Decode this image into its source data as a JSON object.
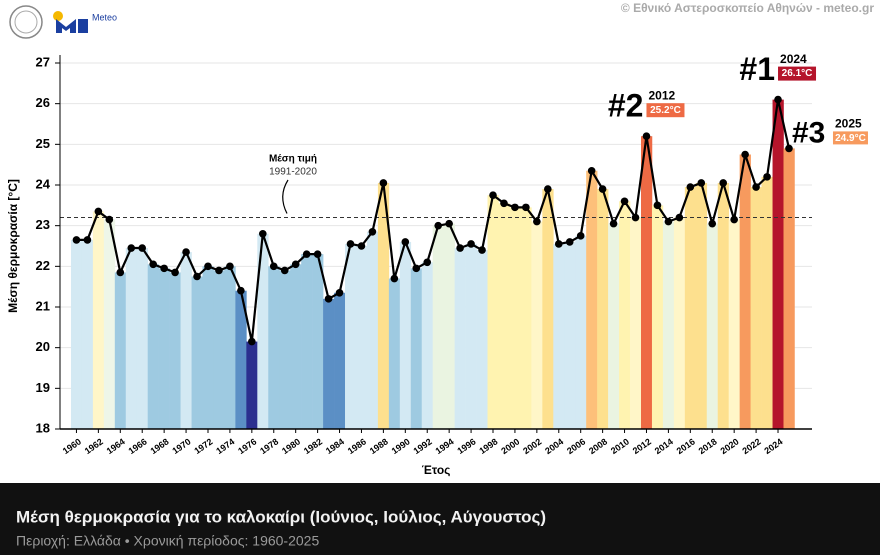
{
  "header": {
    "brand": "Meteo",
    "credit": "© Εθνικό Αστεροσκοπείο Αθηνών - meteo.gr"
  },
  "chart_data": {
    "type": "bar_line",
    "title": "Μέση θερμοκρασία για το καλοκαίρι (Ιούνιος, Ιούλιος, Αύγουστος)",
    "subtitle": "Περιοχή: Ελλάδα • Χρονική περίοδος: 1960-2025",
    "x_label": "Έτος",
    "y_label": "Μέση θερμοκρασία [°C]",
    "x": [
      1960,
      1961,
      1962,
      1963,
      1964,
      1965,
      1966,
      1967,
      1968,
      1969,
      1970,
      1971,
      1972,
      1973,
      1974,
      1975,
      1976,
      1977,
      1978,
      1979,
      1980,
      1981,
      1982,
      1983,
      1984,
      1985,
      1986,
      1987,
      1988,
      1989,
      1990,
      1991,
      1992,
      1993,
      1994,
      1995,
      1996,
      1997,
      1998,
      1999,
      2000,
      2001,
      2002,
      2003,
      2004,
      2005,
      2006,
      2007,
      2008,
      2009,
      2010,
      2011,
      2012,
      2013,
      2014,
      2015,
      2016,
      2017,
      2018,
      2019,
      2020,
      2021,
      2022,
      2023,
      2024,
      2025
    ],
    "values": [
      22.65,
      22.65,
      23.35,
      23.15,
      21.85,
      22.45,
      22.45,
      22.05,
      21.95,
      21.85,
      22.35,
      21.75,
      22.0,
      21.9,
      22.0,
      21.4,
      20.15,
      22.8,
      22.0,
      21.9,
      22.05,
      22.3,
      22.3,
      21.2,
      21.35,
      22.55,
      22.5,
      22.85,
      24.05,
      21.7,
      22.6,
      21.95,
      22.1,
      23.0,
      23.05,
      22.45,
      22.55,
      22.4,
      23.75,
      23.55,
      23.45,
      23.45,
      23.1,
      23.9,
      22.55,
      22.6,
      22.75,
      24.35,
      23.9,
      23.05,
      23.6,
      23.2,
      25.2,
      23.5,
      23.1,
      23.2,
      23.95,
      24.05,
      23.05,
      24.05,
      23.15,
      24.75,
      23.95,
      24.2,
      26.1,
      24.9
    ],
    "colors": [
      "#d3e9f3",
      "#d3e9f3",
      "#fff6c8",
      "#eef6e8",
      "#9ecae1",
      "#d3e9f3",
      "#d3e9f3",
      "#9ecae1",
      "#9ecae1",
      "#9ecae1",
      "#d3e9f3",
      "#9ecae1",
      "#9ecae1",
      "#9ecae1",
      "#9ecae1",
      "#5b8fc5",
      "#2b2f8f",
      "#d3e9f3",
      "#9ecae1",
      "#9ecae1",
      "#9ecae1",
      "#9ecae1",
      "#9ecae1",
      "#5b8fc5",
      "#5b8fc5",
      "#d3e9f3",
      "#d3e9f3",
      "#d3e9f3",
      "#fde08e",
      "#9ecae1",
      "#d3e9f3",
      "#9ecae1",
      "#d3e9f3",
      "#eaf4e1",
      "#eaf4e1",
      "#d3e9f3",
      "#d3e9f3",
      "#d3e9f3",
      "#fff3b0",
      "#fff3b0",
      "#fff3b0",
      "#fff3b0",
      "#fff6c8",
      "#fde08e",
      "#d3e9f3",
      "#d3e9f3",
      "#d3e9f3",
      "#fdc07a",
      "#fde08e",
      "#eaf4e1",
      "#fff3b0",
      "#fff6c8",
      "#ee6a44",
      "#fff3b0",
      "#eaf4e1",
      "#fff6c8",
      "#fde08e",
      "#fde08e",
      "#eaf4e1",
      "#fde08e",
      "#fff6c8",
      "#f79a5e",
      "#fde08e",
      "#fde08e",
      "#b5152b",
      "#f79a5e"
    ],
    "value_labels": [
      null,
      null,
      null,
      null,
      null,
      null,
      null,
      null,
      null,
      null,
      null,
      null,
      null,
      null,
      null,
      null,
      null,
      null,
      null,
      null,
      null,
      null,
      null,
      null,
      null,
      null,
      null,
      null,
      null,
      null,
      null,
      null,
      null,
      null,
      null,
      null,
      null,
      null,
      null,
      null,
      null,
      null,
      null,
      null,
      null,
      null,
      null,
      null,
      null,
      null,
      null,
      null,
      "25.2°C",
      null,
      null,
      null,
      null,
      null,
      null,
      null,
      null,
      null,
      null,
      null,
      "26.1°C",
      "24.9°C"
    ],
    "rank_labels": [
      null,
      null,
      null,
      null,
      null,
      null,
      null,
      null,
      null,
      null,
      null,
      null,
      null,
      null,
      null,
      null,
      null,
      null,
      null,
      null,
      null,
      null,
      null,
      null,
      null,
      null,
      null,
      null,
      null,
      null,
      null,
      null,
      null,
      null,
      null,
      null,
      null,
      null,
      null,
      null,
      null,
      null,
      null,
      null,
      null,
      null,
      null,
      null,
      null,
      null,
      null,
      null,
      "#2",
      null,
      null,
      null,
      null,
      null,
      null,
      null,
      null,
      null,
      null,
      null,
      "#1",
      "#3"
    ],
    "line_color": "#000000",
    "reference": {
      "value": 23.2,
      "label": "Μέση τιμή",
      "period": "1991-2020"
    },
    "xlim": [
      1958.5,
      2027.1
    ],
    "xticks": [
      1960,
      1962,
      1964,
      1966,
      1968,
      1970,
      1972,
      1974,
      1976,
      1978,
      1980,
      1982,
      1984,
      1986,
      1988,
      1990,
      1992,
      1994,
      1996,
      1998,
      2000,
      2002,
      2004,
      2006,
      2008,
      2010,
      2012,
      2014,
      2016,
      2018,
      2020,
      2022,
      2024
    ],
    "ylim": [
      18,
      27
    ],
    "yticks": [
      18,
      19,
      20,
      21,
      22,
      23,
      24,
      25,
      26,
      27
    ],
    "grid": true
  }
}
